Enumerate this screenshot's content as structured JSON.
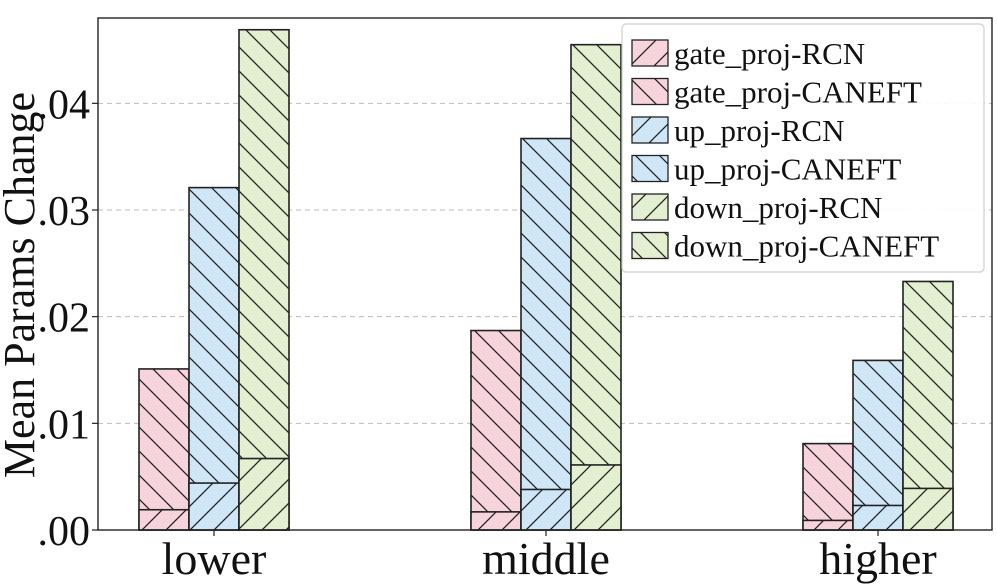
{
  "chart_data": {
    "type": "bar",
    "categories": [
      "lower",
      "middle",
      "higher"
    ],
    "ylabel": "Mean Params Change",
    "xlabel": "",
    "ylim": [
      0,
      0.048
    ],
    "yticks": [
      0.0,
      0.01,
      0.02,
      0.03,
      0.04
    ],
    "ytick_labels": [
      ".00",
      ".01",
      ".02",
      ".03",
      ".04"
    ],
    "grid": "horizontal dashed",
    "legend_position": "top-right",
    "groups": [
      {
        "name": "gate_proj",
        "color": "#f7d3dc",
        "rcn_label": "gate_proj-RCN",
        "caneft_label": "gate_proj-CANEFT",
        "rcn": [
          0.0019,
          0.0017,
          0.0009
        ],
        "caneft": [
          0.0151,
          0.0187,
          0.0081
        ]
      },
      {
        "name": "up_proj",
        "color": "#cfe6f7",
        "rcn_label": "up_proj-RCN",
        "caneft_label": "up_proj-CANEFT",
        "rcn": [
          0.0044,
          0.0038,
          0.0023
        ],
        "caneft": [
          0.0321,
          0.0367,
          0.0159
        ]
      },
      {
        "name": "down_proj",
        "color": "#e2efd0",
        "rcn_label": "down_proj-RCN",
        "caneft_label": "down_proj-CANEFT",
        "rcn": [
          0.0067,
          0.0061,
          0.0039
        ],
        "caneft": [
          0.0469,
          0.0455,
          0.0233
        ]
      }
    ],
    "legend": [
      {
        "label": "gate_proj-RCN",
        "color": "#f7d3dc",
        "hatch": "forward"
      },
      {
        "label": "gate_proj-CANEFT",
        "color": "#f7d3dc",
        "hatch": "back"
      },
      {
        "label": "up_proj-RCN",
        "color": "#cfe6f7",
        "hatch": "forward"
      },
      {
        "label": "up_proj-CANEFT",
        "color": "#cfe6f7",
        "hatch": "back"
      },
      {
        "label": "down_proj-RCN",
        "color": "#e2efd0",
        "hatch": "forward"
      },
      {
        "label": "down_proj-CANEFT",
        "color": "#e2efd0",
        "hatch": "back"
      }
    ]
  }
}
